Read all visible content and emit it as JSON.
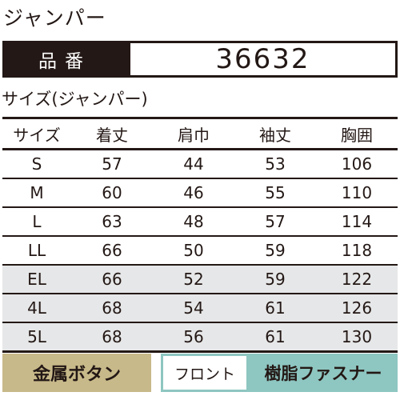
{
  "title": "ジャンパー",
  "product": {
    "label": "品番",
    "number": "36632"
  },
  "section_title": "サイズ(ジャンパー)",
  "table": {
    "headers": [
      "サイズ",
      "着丈",
      "肩巾",
      "袖丈",
      "胸囲"
    ],
    "rows": [
      {
        "size": "S",
        "length": "57",
        "shoulder": "44",
        "sleeve": "53",
        "chest": "106",
        "shaded": false
      },
      {
        "size": "M",
        "length": "60",
        "shoulder": "46",
        "sleeve": "55",
        "chest": "110",
        "shaded": false
      },
      {
        "size": "L",
        "length": "63",
        "shoulder": "48",
        "sleeve": "57",
        "chest": "114",
        "shaded": false
      },
      {
        "size": "LL",
        "length": "66",
        "shoulder": "50",
        "sleeve": "59",
        "chest": "118",
        "shaded": false
      },
      {
        "size": "EL",
        "length": "66",
        "shoulder": "52",
        "sleeve": "59",
        "chest": "122",
        "shaded": true
      },
      {
        "size": "4L",
        "length": "68",
        "shoulder": "54",
        "sleeve": "61",
        "chest": "126",
        "shaded": true
      },
      {
        "size": "5L",
        "length": "68",
        "shoulder": "56",
        "sleeve": "61",
        "chest": "130",
        "shaded": true
      }
    ]
  },
  "badges": {
    "button": "金属ボタン",
    "front": "フロント",
    "zipper": "樹脂ファスナー"
  },
  "colors": {
    "dark": "#231815",
    "gold": "#c8b98a",
    "teal": "#8ec6c1",
    "shade": "#e6e7e8"
  }
}
